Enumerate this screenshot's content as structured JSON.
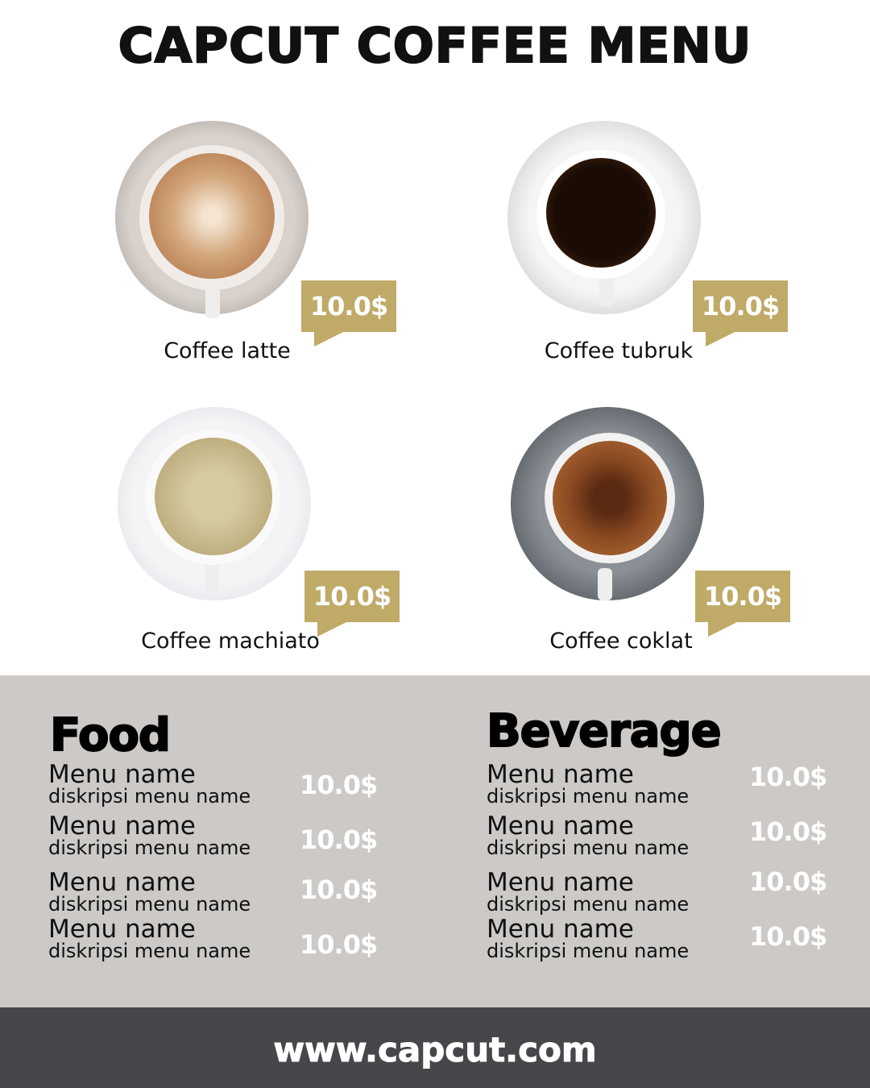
{
  "title": "CAPCUT COFFEE MENU",
  "accent_color": "#bfaa68",
  "coffees": [
    {
      "name": "Coffee latte",
      "price": "10.0$"
    },
    {
      "name": "Coffee tubruk",
      "price": "10.0$"
    },
    {
      "name": "Coffee machiato",
      "price": "10.0$"
    },
    {
      "name": "Coffee coklat",
      "price": "10.0$"
    }
  ],
  "food": {
    "heading": "Food",
    "items": [
      {
        "name": "Menu name",
        "desc": "diskripsi menu name",
        "price": "10.0$"
      },
      {
        "name": "Menu name",
        "desc": "diskripsi menu name",
        "price": "10.0$"
      },
      {
        "name": "Menu name",
        "desc": "diskripsi menu name",
        "price": "10.0$"
      },
      {
        "name": "Menu name",
        "desc": "diskripsi menu name",
        "price": "10.0$"
      }
    ]
  },
  "beverage": {
    "heading": "Beverage",
    "items": [
      {
        "name": "Menu name",
        "desc": "diskripsi menu name",
        "price": "10.0$"
      },
      {
        "name": "Menu name",
        "desc": "diskripsi menu name",
        "price": "10.0$"
      },
      {
        "name": "Menu name",
        "desc": "diskripsi menu name",
        "price": "10.0$"
      },
      {
        "name": "Menu name",
        "desc": "diskripsi menu name",
        "price": "10.0$"
      }
    ]
  },
  "footer": {
    "url": "www.capcut.com"
  }
}
